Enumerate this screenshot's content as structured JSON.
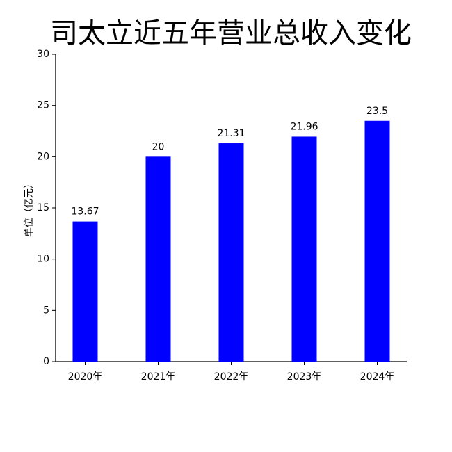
{
  "chart_data": {
    "type": "bar",
    "title": "司太立近五年营业总收入变化",
    "y_label": "单位（亿元）",
    "categories": [
      "2020年",
      "2021年",
      "2022年",
      "2023年",
      "2024年"
    ],
    "values": [
      13.67,
      20,
      21.31,
      21.96,
      23.5
    ],
    "color": "#0000ff",
    "ylim": [
      0,
      30
    ],
    "yticks": [
      0,
      5,
      10,
      15,
      20,
      25,
      30
    ],
    "grid": false
  }
}
